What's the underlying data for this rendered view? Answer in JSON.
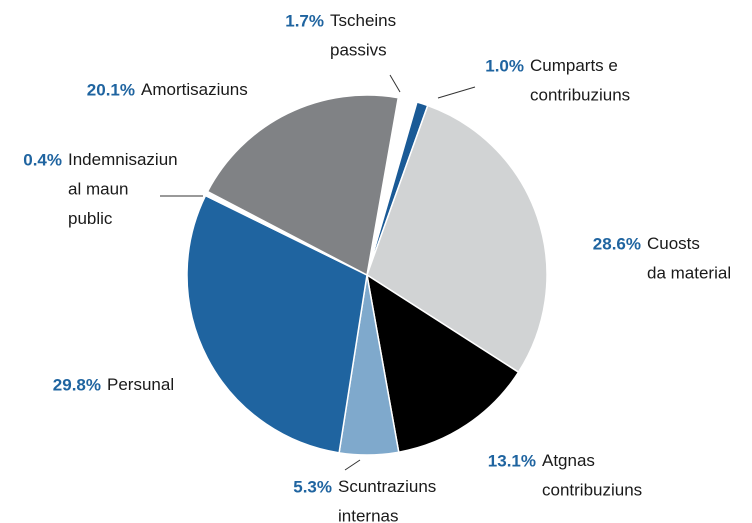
{
  "chart_data": {
    "type": "pie",
    "categories": [
      "Tscheins passivs",
      "Cumparts e contribuziuns",
      "Cuosts da material",
      "Atgnas contribuziuns",
      "Scuntraziuns internas",
      "Persunal",
      "Indemnisaziun al maun public",
      "Amortisaziuns"
    ],
    "values": [
      1.7,
      1.0,
      28.6,
      13.1,
      5.3,
      29.8,
      0.4,
      20.1
    ],
    "value_labels": [
      "1.7%",
      "1.0%",
      "28.6%",
      "13.1%",
      "5.3%",
      "29.8%",
      "0.4%",
      "20.1%"
    ],
    "colors": [
      "#ffffff",
      "#1a5a96",
      "#d1d3d4",
      "#000000",
      "#7fa9cc",
      "#1f64a0",
      "#ffffff",
      "#808285"
    ]
  }
}
